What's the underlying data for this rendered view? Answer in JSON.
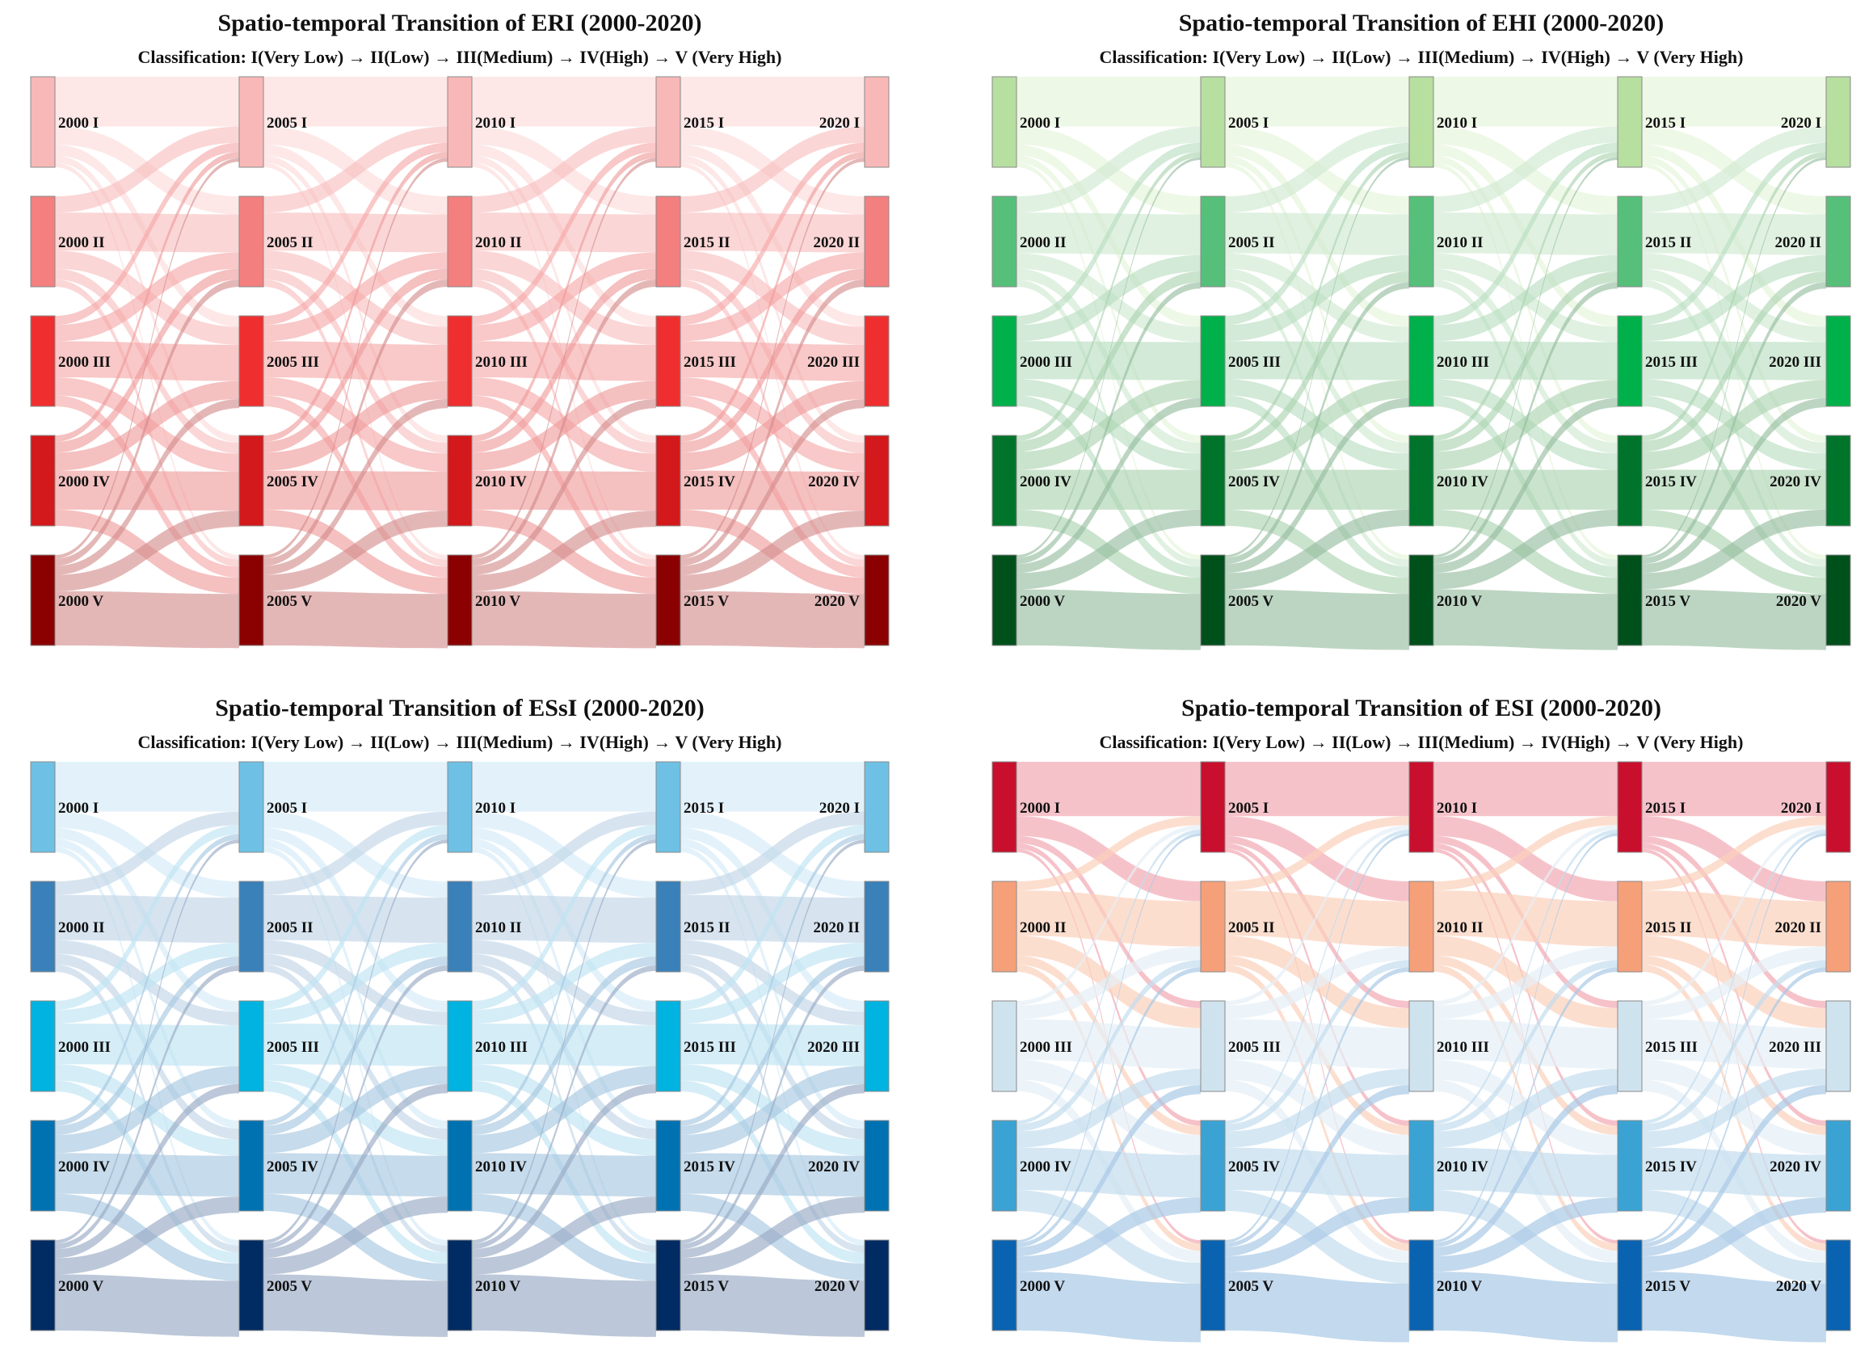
{
  "figure": {
    "panel_order": [
      "eri",
      "ehi",
      "essi",
      "esi"
    ]
  },
  "chart_data": [
    {
      "id": "eri",
      "type": "sankey",
      "title": "Spatio-temporal Transition of ERI (2000-2020)",
      "subtitle": "Classification: I(Very Low) → II(Low) → III(Medium) → IV(High) → V (Very High)",
      "years": [
        "2000",
        "2005",
        "2010",
        "2015",
        "2020"
      ],
      "classes": [
        "I",
        "II",
        "III",
        "IV",
        "V"
      ],
      "node_labels": [
        [
          "2000 I",
          "2000 II",
          "2000 III",
          "2000 IV",
          "2000 V"
        ],
        [
          "2005 I",
          "2005 II",
          "2005 III",
          "2005 IV",
          "2005 V"
        ],
        [
          "2010 I",
          "2010 II",
          "2010 III",
          "2010 IV",
          "2010 V"
        ],
        [
          "2015 I",
          "2015 II",
          "2015 III",
          "2015 IV",
          "2015 V"
        ],
        [
          "2020 I",
          "2020 II",
          "2020 III",
          "2020 IV",
          "2020 V"
        ]
      ],
      "node_colors": [
        "#f9b8b8",
        "#f47f7f",
        "#ef2f2f",
        "#d3191b",
        "#8b0000"
      ],
      "link_colors": [
        "#fcd9d9",
        "#f9bdbd",
        "#f6a7a7",
        "#ef9a9a",
        "#d48a8a"
      ],
      "link_opacity": 0.62,
      "transition_matrix": [
        [
          0.55,
          0.2,
          0.12,
          0.08,
          0.05
        ],
        [
          0.18,
          0.42,
          0.2,
          0.12,
          0.08
        ],
        [
          0.1,
          0.18,
          0.4,
          0.2,
          0.12
        ],
        [
          0.07,
          0.12,
          0.2,
          0.43,
          0.18
        ],
        [
          0.04,
          0.08,
          0.1,
          0.18,
          0.6
        ]
      ]
    },
    {
      "id": "ehi",
      "type": "sankey",
      "title": "Spatio-temporal Transition of EHI (2000-2020)",
      "subtitle": "Classification: I(Very Low) → II(Low) → III(Medium) → IV(High) → V (Very High)",
      "years": [
        "2000",
        "2005",
        "2010",
        "2015",
        "2020"
      ],
      "classes": [
        "I",
        "II",
        "III",
        "IV",
        "V"
      ],
      "node_labels": [
        [
          "2000 I",
          "2000 II",
          "2000 III",
          "2000 IV",
          "2000 V"
        ],
        [
          "2005 I",
          "2005 II",
          "2005 III",
          "2005 IV",
          "2005 V"
        ],
        [
          "2010 I",
          "2010 II",
          "2010 III",
          "2010 IV",
          "2010 V"
        ],
        [
          "2015 I",
          "2015 II",
          "2015 III",
          "2015 IV",
          "2015 V"
        ],
        [
          "2020 I",
          "2020 II",
          "2020 III",
          "2020 IV",
          "2020 V"
        ]
      ],
      "node_colors": [
        "#b7dfa0",
        "#56c07a",
        "#00b04a",
        "#00742b",
        "#00501c"
      ],
      "link_colors": [
        "#e3f3d7",
        "#cde9cf",
        "#b6ddbe",
        "#a9d2ae",
        "#93bb9c"
      ],
      "link_opacity": 0.62,
      "transition_matrix": [
        [
          0.55,
          0.2,
          0.12,
          0.08,
          0.05
        ],
        [
          0.18,
          0.45,
          0.17,
          0.12,
          0.08
        ],
        [
          0.1,
          0.18,
          0.42,
          0.18,
          0.12
        ],
        [
          0.06,
          0.12,
          0.2,
          0.44,
          0.18
        ],
        [
          0.03,
          0.07,
          0.1,
          0.18,
          0.62
        ]
      ]
    },
    {
      "id": "essi",
      "type": "sankey",
      "title": "Spatio-temporal Transition of ESsI (2000-2020)",
      "subtitle": "Classification: I(Very Low) → II(Low) → III(Medium) → IV(High) → V (Very High)",
      "years": [
        "2000",
        "2005",
        "2010",
        "2015",
        "2020"
      ],
      "classes": [
        "I",
        "II",
        "III",
        "IV",
        "V"
      ],
      "node_labels": [
        [
          "2000 I",
          "2000 II",
          "2000 III",
          "2000 IV",
          "2000 V"
        ],
        [
          "2005 I",
          "2005 II",
          "2005 III",
          "2005 IV",
          "2005 V"
        ],
        [
          "2010 I",
          "2010 II",
          "2010 III",
          "2010 IV",
          "2010 V"
        ],
        [
          "2015 I",
          "2015 II",
          "2015 III",
          "2015 IV",
          "2015 V"
        ],
        [
          "2020 I",
          "2020 II",
          "2020 III",
          "2020 IV",
          "2020 V"
        ]
      ],
      "node_colors": [
        "#6ec1e4",
        "#3a80b9",
        "#00b3e0",
        "#0072b2",
        "#002b63"
      ],
      "link_colors": [
        "#d4ebf7",
        "#c2d6e8",
        "#bfe3f3",
        "#a8c8e0",
        "#98aac4"
      ],
      "link_opacity": 0.65,
      "transition_matrix": [
        [
          0.55,
          0.18,
          0.12,
          0.09,
          0.06
        ],
        [
          0.15,
          0.5,
          0.15,
          0.12,
          0.08
        ],
        [
          0.1,
          0.15,
          0.45,
          0.18,
          0.12
        ],
        [
          0.06,
          0.1,
          0.2,
          0.45,
          0.19
        ],
        [
          0.04,
          0.06,
          0.1,
          0.18,
          0.62
        ]
      ]
    },
    {
      "id": "esi",
      "type": "sankey",
      "title": "Spatio-temporal Transition of ESI (2000-2020)",
      "subtitle": "Classification: I(Very Low) → II(Low) → III(Medium) → IV(High) → V (Very High)",
      "years": [
        "2000",
        "2005",
        "2010",
        "2015",
        "2020"
      ],
      "classes": [
        "I",
        "II",
        "III",
        "IV",
        "V"
      ],
      "node_labels": [
        [
          "2000 I",
          "2000 II",
          "2000 III",
          "2000 IV",
          "2000 V"
        ],
        [
          "2005 I",
          "2005 II",
          "2005 III",
          "2005 IV",
          "2005 V"
        ],
        [
          "2010 I",
          "2010 II",
          "2010 III",
          "2010 IV",
          "2010 V"
        ],
        [
          "2015 I",
          "2015 II",
          "2015 III",
          "2015 IV",
          "2015 V"
        ],
        [
          "2020 I",
          "2020 II",
          "2020 III",
          "2020 IV",
          "2020 V"
        ]
      ],
      "node_colors": [
        "#c8102e",
        "#f6a07a",
        "#cfe3ef",
        "#3aa3d4",
        "#0a63b0"
      ],
      "link_colors": [
        "#f2a8b2",
        "#fbd0bb",
        "#e6eff6",
        "#c3ddee",
        "#a9c9e6"
      ],
      "link_opacity": 0.7,
      "transition_matrix": [
        [
          0.6,
          0.22,
          0.08,
          0.06,
          0.04
        ],
        [
          0.1,
          0.5,
          0.22,
          0.1,
          0.08
        ],
        [
          0.05,
          0.15,
          0.45,
          0.22,
          0.13
        ],
        [
          0.04,
          0.08,
          0.18,
          0.47,
          0.23
        ],
        [
          0.03,
          0.05,
          0.1,
          0.17,
          0.65
        ]
      ]
    }
  ]
}
